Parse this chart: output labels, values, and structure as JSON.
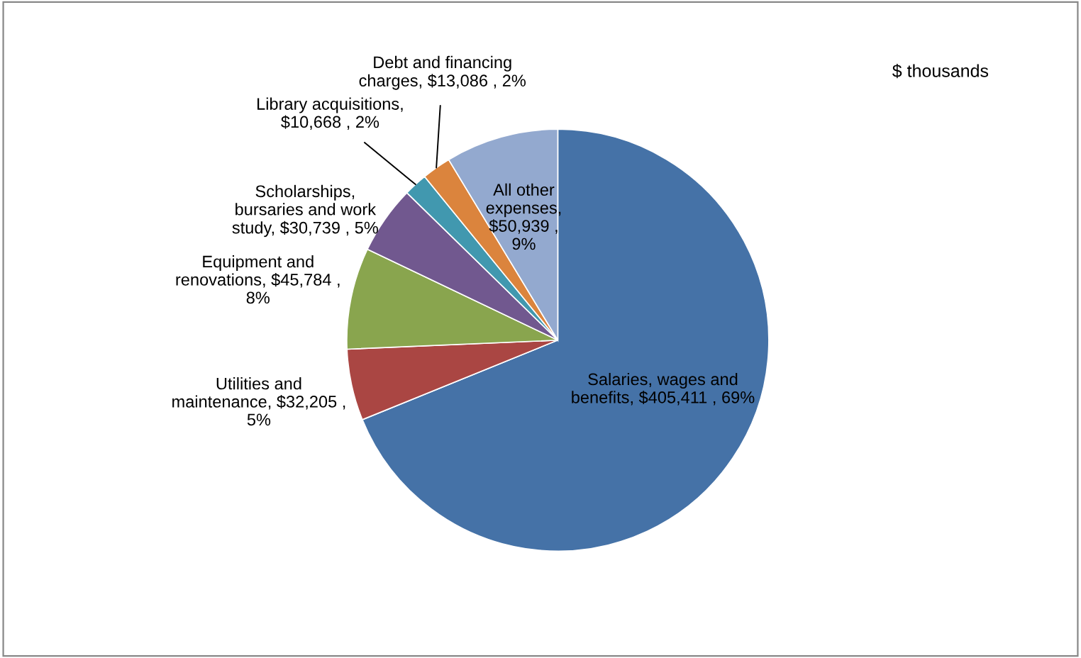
{
  "chart_data": {
    "type": "pie",
    "categories": [
      "Salaries, wages and benefits",
      "Utilities and maintenance",
      "Equipment and renovations",
      "Scholarships, bursaries and work study",
      "Library acquisitions",
      "Debt and financing charges",
      "All other expenses"
    ],
    "values": [
      405411,
      32205,
      45784,
      30739,
      10668,
      13086,
      50939
    ],
    "value_labels": [
      ", $405,411 , 69%",
      ", $32,205 , 5%",
      ", $45,784 , 8%",
      ", $30,739 , 5%",
      ", $10,668 , 2%",
      ", $13,086 , 2%",
      ", $50,939 , 9%"
    ],
    "colors": [
      "#4572a7",
      "#aa4643",
      "#89a54e",
      "#71588f",
      "#4198af",
      "#db843d",
      "#93a9cf"
    ],
    "annotations": [
      "$ thousands"
    ],
    "legend": false
  }
}
